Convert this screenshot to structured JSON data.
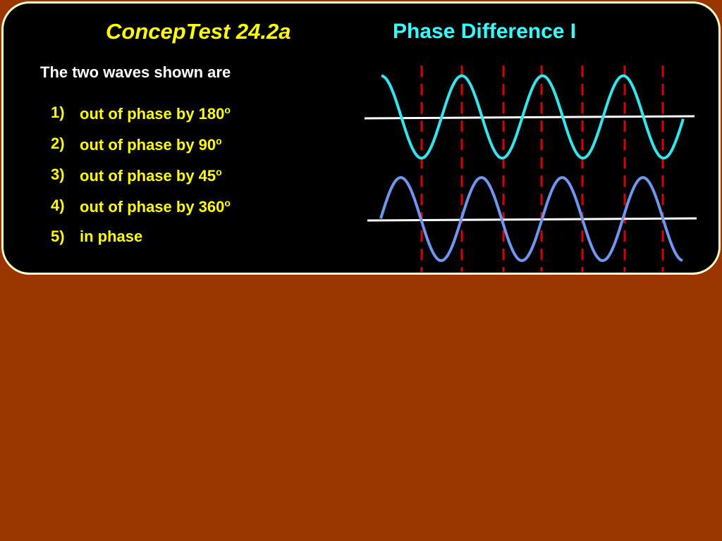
{
  "header": {
    "title": "ConcepTest 24.2a",
    "subtitle": "Phase Difference I"
  },
  "question": "The two waves shown are",
  "options": [
    {
      "number": "1)",
      "text": "out of phase by 180",
      "sup": "o"
    },
    {
      "number": "2)",
      "text": "out of phase by 90",
      "sup": "o"
    },
    {
      "number": "3)",
      "text": "out of phase by 45",
      "sup": "o"
    },
    {
      "number": "4)",
      "text": "out of phase by 360",
      "sup": "o"
    },
    {
      "number": "5)",
      "text": "in phase"
    }
  ]
}
